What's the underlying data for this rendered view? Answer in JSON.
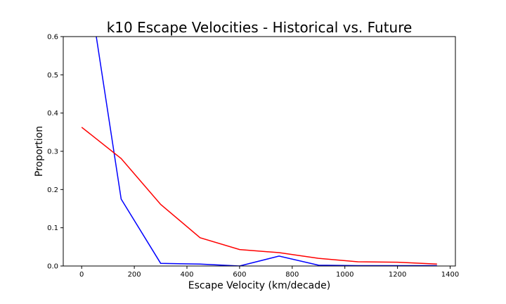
{
  "chart_data": {
    "type": "line",
    "title": "k10 Escape Velocities - Historical vs. Future",
    "xlabel": "Escape Velocity (km/decade)",
    "ylabel": "Proportion",
    "xlim": [
      -70,
      1420
    ],
    "ylim": [
      0,
      0.6
    ],
    "xticks": [
      0,
      200,
      400,
      600,
      800,
      1000,
      1200,
      1400
    ],
    "xtick_labels": [
      "0",
      "200",
      "400",
      "600",
      "800",
      "1000",
      "1200",
      "1400"
    ],
    "yticks": [
      0.0,
      0.1,
      0.2,
      0.3,
      0.4,
      0.5,
      0.6
    ],
    "ytick_labels": [
      "0.0",
      "0.1",
      "0.2",
      "0.3",
      "0.4",
      "0.5",
      "0.6"
    ],
    "grid": false,
    "x": [
      0,
      150,
      300,
      450,
      600,
      750,
      900,
      1050,
      1200,
      1350
    ],
    "series": [
      {
        "color": "#0000ff",
        "values": [
          0.85,
          0.175,
          0.007,
          0.005,
          0.0,
          0.026,
          0.002,
          0.001,
          0.001,
          0.001
        ]
      },
      {
        "color": "#ff0000",
        "values": [
          0.363,
          0.281,
          0.161,
          0.074,
          0.043,
          0.035,
          0.02,
          0.011,
          0.01,
          0.005
        ]
      }
    ]
  }
}
